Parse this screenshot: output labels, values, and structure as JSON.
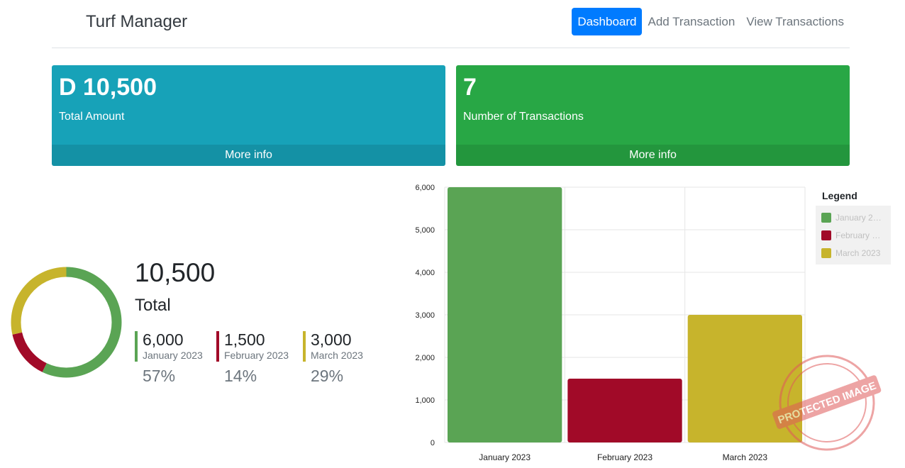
{
  "navbar": {
    "brand": "Turf Manager",
    "links": [
      {
        "label": "Dashboard",
        "active": true
      },
      {
        "label": "Add Transaction",
        "active": false
      },
      {
        "label": "View Transactions",
        "active": false
      }
    ]
  },
  "cards": [
    {
      "value": "D 10,500",
      "label": "Total Amount",
      "footer": "More info",
      "color": "#17a2b8"
    },
    {
      "value": "7",
      "label": "Number of Transactions",
      "footer": "More info",
      "color": "#28a745"
    }
  ],
  "summary": {
    "total_value": "10,500",
    "total_label": "Total",
    "items": [
      {
        "value": "6,000",
        "label": "January 2023",
        "percent": "57%",
        "color": "#5aa454"
      },
      {
        "value": "1,500",
        "label": "February 2023",
        "percent": "14%",
        "color": "#a10a28"
      },
      {
        "value": "3,000",
        "label": "March 2023",
        "percent": "29%",
        "color": "#c7b42c"
      }
    ]
  },
  "legend": {
    "title": "Legend",
    "items": [
      {
        "label": "January 2023",
        "color": "#5aa454"
      },
      {
        "label": "February 2023",
        "color": "#a10a28"
      },
      {
        "label": "March 2023",
        "color": "#c7b42c"
      }
    ]
  },
  "watermark": {
    "text": "PROTECTED IMAGE"
  },
  "chart_data": [
    {
      "type": "pie",
      "categories": [
        "January 2023",
        "February 2023",
        "March 2023"
      ],
      "values": [
        6000,
        1500,
        3000
      ],
      "colors": [
        "#5aa454",
        "#a10a28",
        "#c7b42c"
      ]
    },
    {
      "type": "bar",
      "categories": [
        "January 2023",
        "February 2023",
        "March 2023"
      ],
      "values": [
        6000,
        1500,
        3000
      ],
      "colors": [
        "#5aa454",
        "#a10a28",
        "#c7b42c"
      ],
      "ylim": [
        0,
        6000
      ],
      "yticks": [
        "0",
        "1,000",
        "2,000",
        "3,000",
        "4,000",
        "5,000",
        "6,000"
      ],
      "grid": true,
      "legend_position": "right"
    }
  ]
}
